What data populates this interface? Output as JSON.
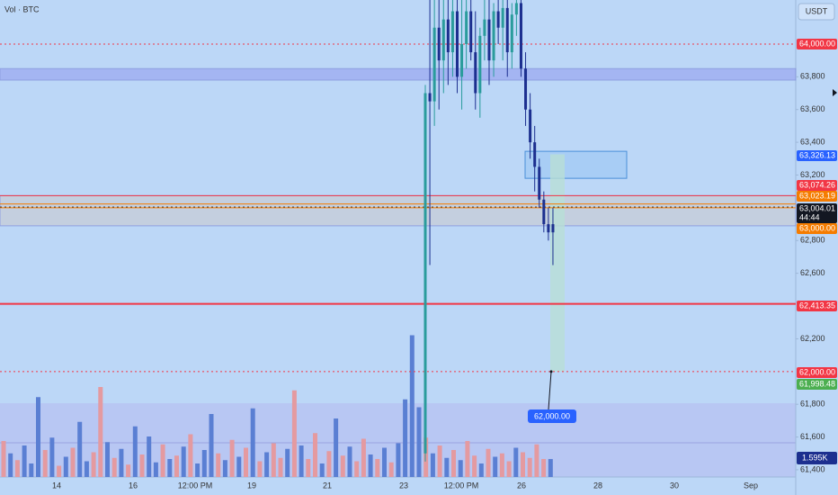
{
  "chart_data": {
    "type": "candlestick",
    "title": "Vol · BTC",
    "currency": "USDT",
    "ylim": [
      61246,
      64269
    ],
    "yticks": [
      {
        "value": 61400,
        "label": "61,400"
      },
      {
        "value": 61600,
        "label": "61,600"
      },
      {
        "value": 61800,
        "label": "61,800"
      },
      {
        "value": 62200,
        "label": "62,200"
      },
      {
        "value": 62600,
        "label": "62,600"
      },
      {
        "value": 62800,
        "label": "62,800"
      },
      {
        "value": 63200,
        "label": "63,200"
      },
      {
        "value": 63400,
        "label": "63,400"
      },
      {
        "value": 63600,
        "label": "63,600"
      },
      {
        "value": 63800,
        "label": "63,800"
      }
    ],
    "x_labels": [
      "14",
      "16",
      "12:00 PM",
      "19",
      "21",
      "23",
      "12:00 PM",
      "26",
      "28",
      "30",
      "Sep"
    ],
    "up_color": "#2a9c9c",
    "down_color": "#1c2f8f",
    "open": [
      61500,
      63700,
      63650,
      64100,
      63900,
      64150,
      63950,
      64200,
      63800,
      64000,
      64200,
      63950,
      63700,
      64050,
      64150,
      63900,
      64200,
      64100,
      64220,
      63950,
      64180,
      64250,
      63850,
      63600,
      63400,
      63250,
      63050,
      62900,
      62900
    ],
    "high": [
      63750,
      64269,
      64269,
      64269,
      64269,
      64269,
      64269,
      64269,
      64269,
      64269,
      64269,
      64200,
      64100,
      64269,
      64269,
      64250,
      64269,
      64269,
      64269,
      64250,
      64269,
      64269,
      63950,
      63700,
      63500,
      63300,
      63100,
      63000,
      63000
    ],
    "low": [
      61450,
      62650,
      63500,
      63600,
      63700,
      63750,
      63800,
      63700,
      63600,
      63850,
      63900,
      63600,
      63550,
      63900,
      63750,
      63800,
      64000,
      63900,
      63800,
      63850,
      64050,
      63800,
      63500,
      63300,
      63100,
      63000,
      62850,
      62800,
      62650
    ],
    "close": [
      63700,
      63650,
      64100,
      63900,
      64150,
      63950,
      64200,
      63800,
      64000,
      64200,
      63950,
      63700,
      64050,
      64150,
      63900,
      64200,
      64100,
      64220,
      63950,
      64180,
      64250,
      63850,
      63600,
      63400,
      63250,
      63050,
      62900,
      62850,
      62850
    ],
    "price_lines": [
      {
        "value": 64000,
        "label": "64,000.00",
        "color": "#f23645",
        "style": "dotted"
      },
      {
        "value": 63326.13,
        "label": "63,326.13",
        "color": "#2962ff",
        "style": "none"
      },
      {
        "value": 63074.26,
        "label": "63,074.26",
        "color": "#f23645",
        "style": "solid"
      },
      {
        "value": 63023.19,
        "label": "63,023.19",
        "color": "#f57c00",
        "style": "solid"
      },
      {
        "value": 63004.01,
        "label": "63,004.01",
        "color": "#131722",
        "style": "dotted"
      },
      {
        "value": 63000,
        "label": "63,000.00",
        "color": "#f57c00",
        "style": "solid"
      },
      {
        "value": 62413.35,
        "label": "62,413.35",
        "color": "#f23645",
        "style": "thick"
      },
      {
        "value": 62000,
        "label": "62,000.00",
        "color": "#f23645",
        "style": "dotted"
      },
      {
        "value": 61998.48,
        "label": "61,998.48",
        "color": "#4caf50",
        "style": "none"
      }
    ],
    "countdown": "44:44",
    "zones": [
      {
        "from": 63780,
        "to": 63850,
        "color": "#9aa8f0"
      },
      {
        "from": 62890,
        "to": 63074,
        "color": "#c8cdd6"
      }
    ],
    "box": {
      "from": 63180,
      "to": 63345
    },
    "target": {
      "from": 63326.13,
      "to": 62000,
      "value": 62000,
      "label": "62,000.00"
    },
    "volume": {
      "values": [
        3.2,
        2.1,
        1.5,
        2.8,
        1.2,
        7.1,
        2.4,
        3.5,
        1.0,
        1.8,
        2.6,
        4.9,
        1.4,
        2.2,
        8.0,
        3.1,
        1.7,
        2.5,
        1.1,
        4.5,
        2.0,
        3.6,
        1.3,
        2.9,
        1.6,
        1.9,
        2.7,
        3.8,
        1.2,
        2.4,
        5.6,
        2.1,
        1.5,
        3.3,
        1.8,
        2.6,
        6.1,
        1.4,
        2.2,
        3.0,
        1.7,
        2.5,
        7.7,
        2.8,
        1.6,
        3.9,
        1.2,
        2.3,
        5.2,
        1.9,
        2.7,
        1.4,
        3.4,
        2.0,
        1.6,
        2.6,
        1.3,
        3.0,
        6.9,
        12.6,
        6.2,
        3.5,
        2.1,
        2.8,
        1.7,
        2.4,
        1.5,
        3.2,
        1.9,
        1.2,
        2.5,
        1.8,
        2.1,
        1.4,
        2.6,
        2.2,
        1.7,
        2.9,
        1.6,
        1.595
      ],
      "colors": [
        "#e49aa0",
        "#5a7fd3",
        "#e49aa0",
        "#5a7fd3",
        "#5a7fd3",
        "#5a7fd3",
        "#e49aa0",
        "#5a7fd3",
        "#e49aa0",
        "#5a7fd3",
        "#e49aa0",
        "#5a7fd3",
        "#5a7fd3",
        "#e49aa0",
        "#e49aa0",
        "#5a7fd3",
        "#e49aa0",
        "#5a7fd3",
        "#e49aa0",
        "#5a7fd3",
        "#e49aa0",
        "#5a7fd3",
        "#5a7fd3",
        "#e49aa0",
        "#5a7fd3",
        "#e49aa0",
        "#5a7fd3",
        "#e49aa0",
        "#5a7fd3",
        "#5a7fd3",
        "#5a7fd3",
        "#e49aa0",
        "#5a7fd3",
        "#e49aa0",
        "#5a7fd3",
        "#e49aa0",
        "#5a7fd3",
        "#e49aa0",
        "#5a7fd3",
        "#e49aa0",
        "#e49aa0",
        "#5a7fd3",
        "#e49aa0",
        "#5a7fd3",
        "#e49aa0",
        "#e49aa0",
        "#5a7fd3",
        "#e49aa0",
        "#5a7fd3",
        "#e49aa0",
        "#5a7fd3",
        "#e49aa0",
        "#e49aa0",
        "#5a7fd3",
        "#e49aa0",
        "#5a7fd3",
        "#e49aa0",
        "#5a7fd3",
        "#5a7fd3",
        "#5a7fd3",
        "#5a7fd3",
        "#e49aa0",
        "#5a7fd3",
        "#e49aa0",
        "#5a7fd3",
        "#e49aa0",
        "#5a7fd3",
        "#e49aa0",
        "#e49aa0",
        "#5a7fd3",
        "#e49aa0",
        "#5a7fd3",
        "#e49aa0",
        "#e49aa0",
        "#5a7fd3",
        "#e49aa0",
        "#e49aa0",
        "#e49aa0",
        "#e49aa0",
        "#5a7fd3"
      ],
      "last_label": "1.595K",
      "last_color": "#1c2f8f"
    }
  }
}
